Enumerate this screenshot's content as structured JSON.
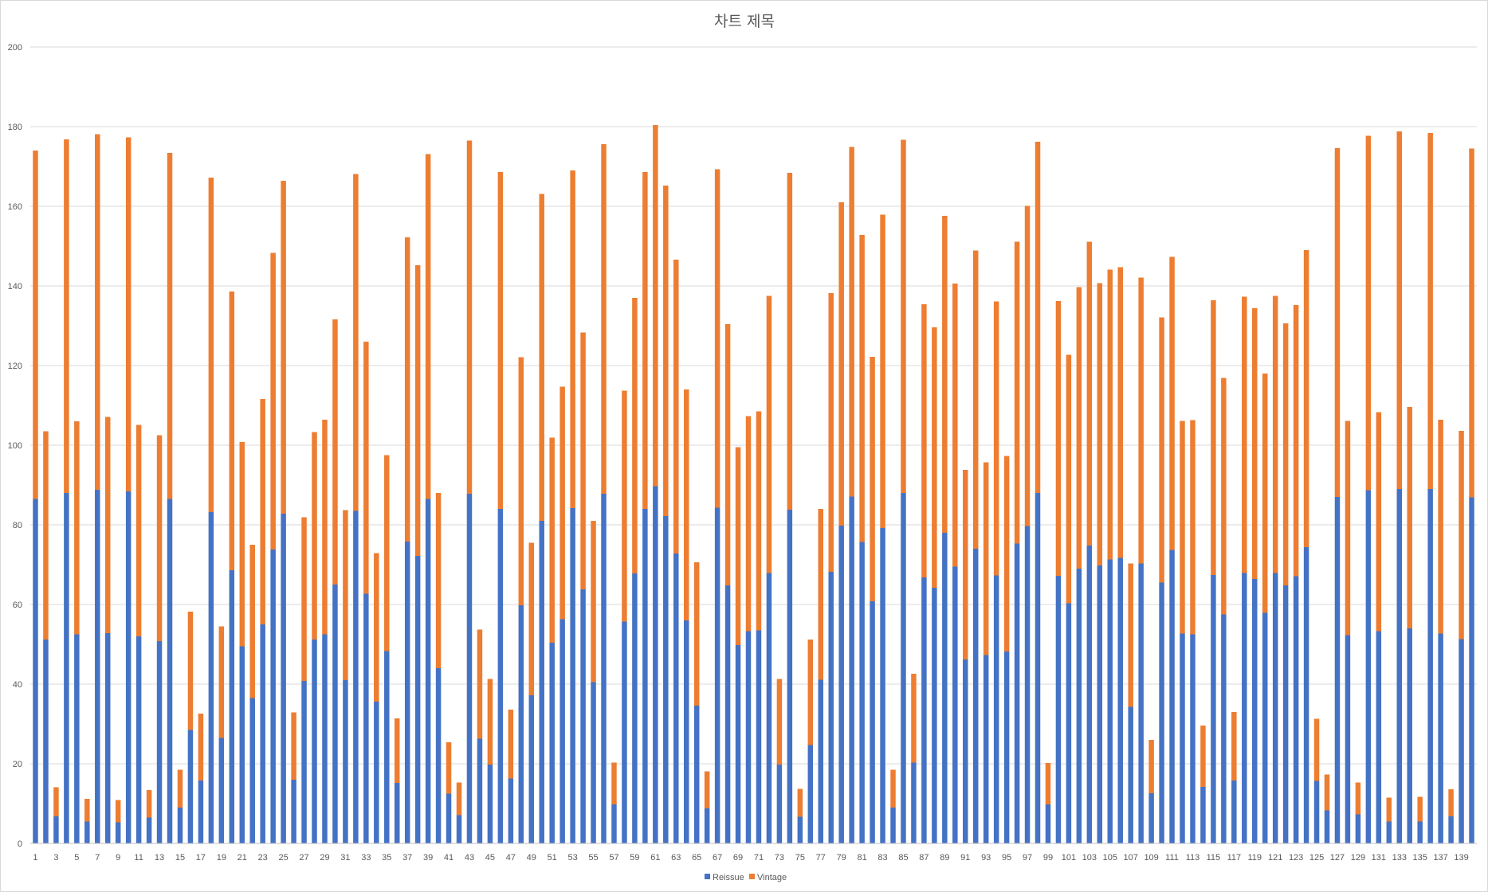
{
  "chart_data": {
    "type": "bar",
    "stacked": true,
    "title": "차트 제목",
    "xlabel": "",
    "ylabel": "",
    "ylim": [
      0,
      200
    ],
    "yticks": [
      0,
      20,
      40,
      60,
      80,
      100,
      120,
      140,
      160,
      180,
      200
    ],
    "grid": true,
    "legend_position": "bottom",
    "categories": [
      1,
      2,
      3,
      4,
      5,
      6,
      7,
      8,
      9,
      10,
      11,
      12,
      13,
      14,
      15,
      16,
      17,
      18,
      19,
      20,
      21,
      22,
      23,
      24,
      25,
      26,
      27,
      28,
      29,
      30,
      31,
      32,
      33,
      34,
      35,
      36,
      37,
      38,
      39,
      40,
      41,
      42,
      43,
      44,
      45,
      46,
      47,
      48,
      49,
      50,
      51,
      52,
      53,
      54,
      55,
      56,
      57,
      58,
      59,
      60,
      61,
      62,
      63,
      64,
      65,
      66,
      67,
      68,
      69,
      70,
      71,
      72,
      73,
      74,
      75,
      76,
      77,
      78,
      79,
      80,
      81,
      82,
      83,
      84,
      85,
      86,
      87,
      88,
      89,
      90,
      91,
      92,
      93,
      94,
      95,
      96,
      97,
      98,
      99,
      100,
      101,
      102,
      103,
      104,
      105,
      106,
      107,
      108,
      109,
      110,
      111,
      112,
      113,
      114,
      115,
      116,
      117,
      118,
      119,
      120,
      121,
      122,
      123,
      124,
      125,
      126,
      127,
      128,
      129,
      130,
      131,
      132,
      133,
      134,
      135,
      136,
      137,
      138,
      139,
      140
    ],
    "xtick_labels": [
      1,
      3,
      5,
      7,
      9,
      11,
      13,
      15,
      17,
      19,
      21,
      23,
      25,
      27,
      29,
      31,
      33,
      35,
      37,
      39,
      41,
      43,
      45,
      47,
      49,
      51,
      53,
      55,
      57,
      59,
      61,
      63,
      65,
      67,
      69,
      71,
      73,
      75,
      77,
      79,
      81,
      83,
      85,
      87,
      89,
      91,
      93,
      95,
      97,
      99,
      101,
      103,
      105,
      107,
      109,
      111,
      113,
      115,
      117,
      119,
      121,
      123,
      125,
      127,
      129,
      131,
      133,
      135,
      137,
      139
    ],
    "series": [
      {
        "name": "Reissue",
        "color": "#4472C4",
        "values": [
          86.5,
          51.2,
          6.8,
          88,
          52.5,
          5.5,
          88.8,
          52.8,
          5.3,
          88.4,
          52,
          6.5,
          50.8,
          86.5,
          9,
          28.5,
          15.8,
          83.2,
          26.5,
          68.6,
          49.5,
          36.5,
          55,
          73.8,
          82.8,
          16,
          40.8,
          51.2,
          52.5,
          65,
          41,
          83.5,
          62.7,
          35.6,
          48.3,
          15.2,
          75.8,
          72.2,
          86.5,
          44,
          12.5,
          7.1,
          87.8,
          26.3,
          19.8,
          84,
          16.3,
          59.8,
          37.2,
          81,
          50.4,
          56.3,
          84.2,
          63.8,
          40.5,
          87.8,
          9.8,
          55.7,
          67.8,
          84,
          89.7,
          82.2,
          72.8,
          56,
          34.6,
          8.8,
          84.3,
          64.8,
          49.8,
          53.3,
          53.5,
          67.9,
          19.8,
          83.8,
          6.7,
          24.7,
          41.1,
          68.2,
          79.8,
          87.1,
          75.7,
          60.8,
          79.2,
          9,
          88,
          20.3,
          66.8,
          64.2,
          78,
          69.5,
          46.2,
          74,
          47.3,
          67.3,
          48.2,
          75.3,
          79.7,
          88,
          9.8,
          67.2,
          60.3,
          69,
          74.8,
          69.8,
          71.3,
          71.7,
          34.3,
          70.3,
          12.6,
          65.5,
          73.7,
          52.7,
          52.5,
          14.2,
          67.4,
          57.5,
          15.8,
          67.9,
          66.4,
          57.9,
          67.9,
          64.8,
          67.1,
          74.4,
          15.7,
          8.3,
          87,
          52.3,
          7.3,
          88.7,
          53.3,
          5.5,
          89,
          54,
          5.5,
          89,
          52.7,
          6.8,
          51.3,
          86.9
        ]
      },
      {
        "name": "Vintage",
        "color": "#ED7D31",
        "values": [
          87.5,
          52.3,
          7.3,
          88.8,
          53.5,
          5.7,
          89.3,
          54.3,
          5.6,
          88.9,
          53.1,
          6.9,
          51.7,
          86.9,
          9.5,
          29.7,
          16.8,
          84,
          28,
          70,
          51.3,
          38.5,
          56.6,
          74.5,
          83.6,
          16.9,
          41.1,
          52.1,
          53.9,
          66.6,
          42.7,
          84.6,
          63.3,
          37.3,
          49.2,
          16.2,
          76.4,
          73,
          86.6,
          44,
          12.9,
          8.2,
          88.7,
          27.4,
          21.5,
          84.6,
          17.3,
          62.3,
          38.3,
          82.1,
          51.5,
          58.4,
          84.8,
          64.5,
          40.5,
          87.8,
          10.5,
          58,
          69.2,
          84.6,
          90.7,
          83,
          73.8,
          58,
          36,
          9.3,
          85,
          65.6,
          49.7,
          54,
          55,
          69.6,
          21.5,
          84.6,
          7,
          26.5,
          42.9,
          70,
          81.2,
          87.8,
          77.1,
          61.4,
          78.7,
          9.5,
          88.7,
          22.3,
          68.6,
          65.4,
          79.6,
          71.1,
          47.6,
          74.9,
          48.4,
          68.8,
          49.1,
          75.8,
          80.4,
          88.2,
          10.4,
          69,
          62.4,
          70.7,
          76.3,
          70.9,
          72.8,
          73,
          36,
          71.8,
          13.4,
          66.6,
          73.6,
          53.4,
          53.8,
          15.4,
          69,
          59.4,
          17.2,
          69.4,
          68,
          60.1,
          69.6,
          65.8,
          68.1,
          74.6,
          15.6,
          9,
          87.6,
          53.8,
          8,
          89,
          55,
          6,
          89.8,
          55.6,
          6.2,
          89.4,
          53.7,
          6.8,
          52.3,
          87.6
        ]
      }
    ]
  }
}
